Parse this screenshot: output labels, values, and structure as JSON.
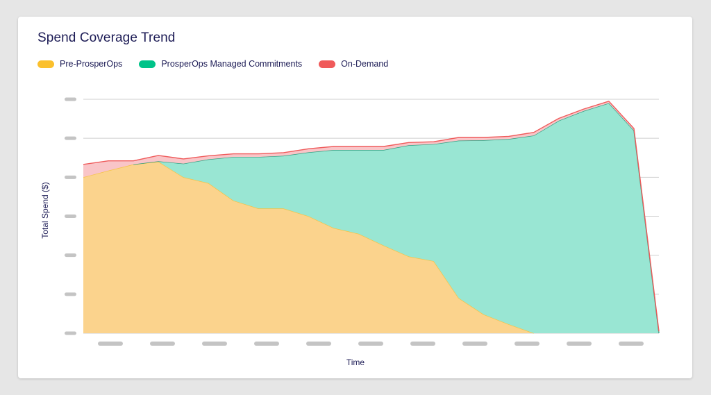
{
  "chart_data": {
    "type": "area",
    "stacked": true,
    "title": "Spend Coverage Trend",
    "xlabel": "Time",
    "ylabel": "Total Spend ($)",
    "legend": "top-left",
    "grid": true,
    "ylim": [
      0,
      6
    ],
    "x": [
      0,
      0.5,
      1,
      1.5,
      2,
      2.5,
      3,
      3.5,
      4,
      4.5,
      5,
      5.5,
      6,
      6.5,
      7,
      7.5,
      8,
      8.5,
      9,
      9.5,
      10,
      10.5,
      11,
      11.5
    ],
    "series": [
      {
        "name": "Pre-ProsperOps",
        "color": "#fbd38d",
        "line": "#f6c343",
        "values": [
          4.0,
          4.17,
          4.33,
          4.4,
          4.0,
          3.85,
          3.4,
          3.2,
          3.2,
          3.0,
          2.7,
          2.55,
          2.25,
          1.97,
          1.85,
          0.9,
          0.48,
          0.23,
          0,
          0,
          0,
          0,
          0,
          0
        ]
      },
      {
        "name": "ProsperOps Managed Commitments",
        "color": "#99e6d3",
        "line": "#2f9e80",
        "values": [
          0,
          0,
          0,
          0.01,
          0.35,
          0.61,
          1.12,
          1.32,
          1.35,
          1.64,
          2.0,
          2.15,
          2.45,
          2.85,
          3.0,
          4.04,
          4.47,
          4.75,
          5.07,
          5.45,
          5.7,
          5.9,
          5.2,
          0
        ]
      },
      {
        "name": "On-Demand",
        "color": "#f9c5c8",
        "line": "#ef5b5b",
        "values": [
          0.33,
          0.25,
          0.09,
          0.15,
          0.12,
          0.09,
          0.08,
          0.08,
          0.08,
          0.09,
          0.09,
          0.09,
          0.09,
          0.07,
          0.06,
          0.08,
          0.07,
          0.07,
          0.08,
          0.06,
          0.05,
          0.05,
          0.05,
          0.05
        ]
      }
    ]
  },
  "legend_items": [
    {
      "label": "Pre-ProsperOps",
      "color": "#fbc02d"
    },
    {
      "label": "ProsperOps Managed Commitments",
      "color": "#00c389"
    },
    {
      "label": "On-Demand",
      "color": "#f05a5a"
    }
  ]
}
